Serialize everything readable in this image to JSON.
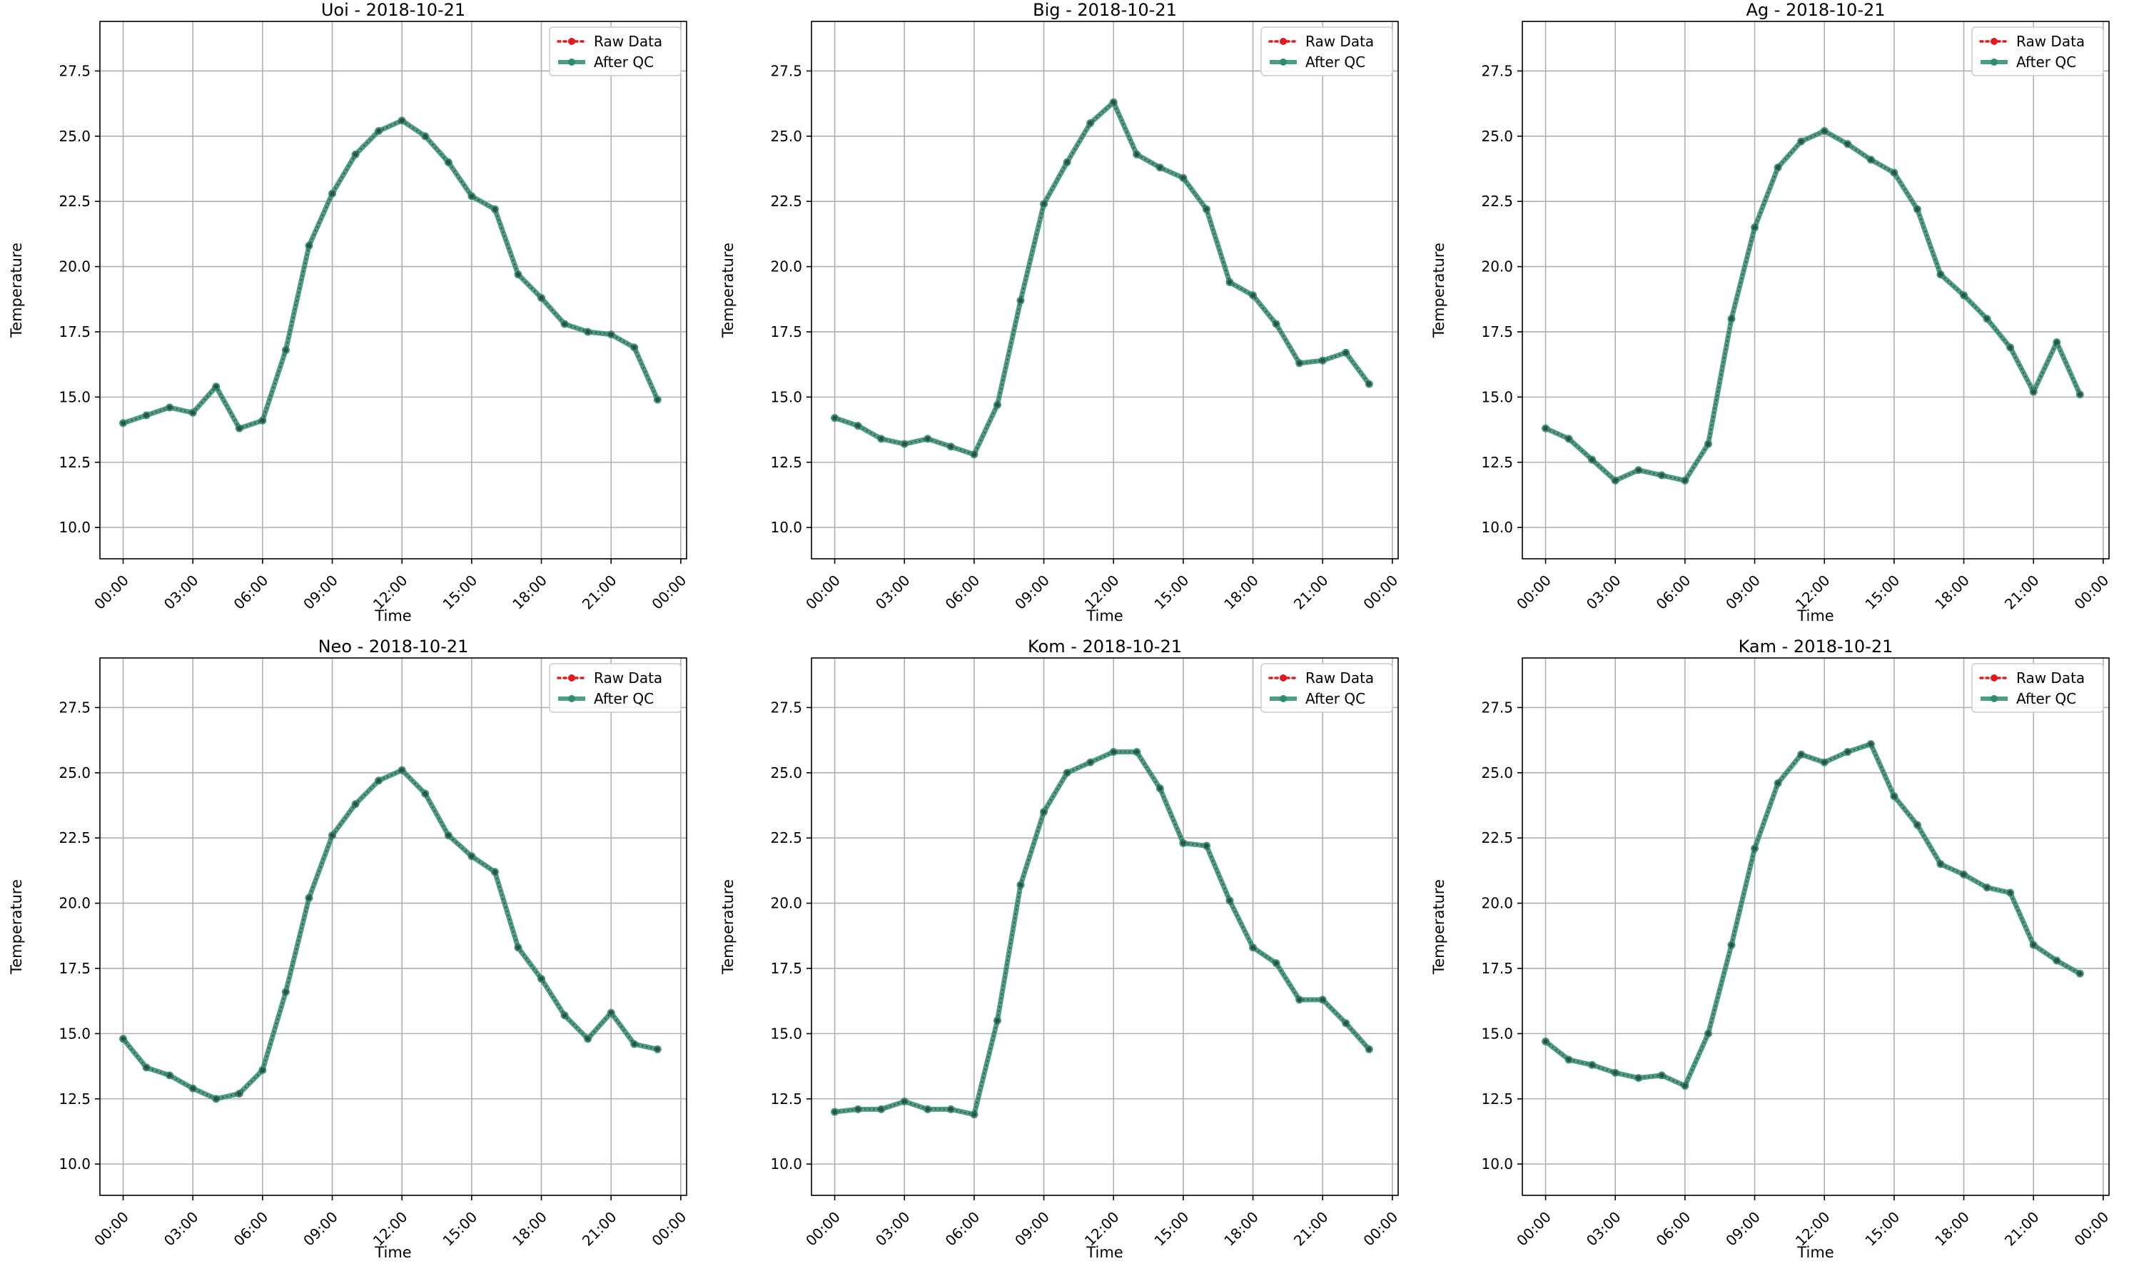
{
  "chart_data": [
    {
      "type": "line",
      "title": "Uoi - 2018-10-21",
      "xlabel": "Time",
      "ylabel": "Temperature",
      "ylim": [
        8.8,
        29.4
      ],
      "yticks": [
        10.0,
        12.5,
        15.0,
        17.5,
        20.0,
        22.5,
        25.0,
        27.5
      ],
      "ytick_labels": [
        "10.0",
        "12.5",
        "15.0",
        "17.5",
        "20.0",
        "22.5",
        "25.0",
        "27.5"
      ],
      "xlim": [
        "2018-10-20 23:00",
        "2018-10-22 00:15"
      ],
      "xtick_labels": [
        "00:00",
        "03:00",
        "06:00",
        "09:00",
        "12:00",
        "15:00",
        "18:00",
        "21:00",
        "00:00"
      ],
      "grid": true,
      "legend_position": "top-right",
      "x": [
        "00:00",
        "01:00",
        "02:00",
        "03:00",
        "04:00",
        "05:00",
        "06:00",
        "07:00",
        "08:00",
        "09:00",
        "10:00",
        "11:00",
        "12:00",
        "13:00",
        "14:00",
        "15:00",
        "16:00",
        "17:00",
        "18:00",
        "19:00",
        "20:00",
        "21:00",
        "22:00",
        "23:00"
      ],
      "series": [
        {
          "name": "Raw Data",
          "color": "#e41a1c",
          "values": [
            14.0,
            14.3,
            14.6,
            14.4,
            15.4,
            13.8,
            14.1,
            16.8,
            20.8,
            22.8,
            24.3,
            25.2,
            25.6,
            25.0,
            24.0,
            22.7,
            22.2,
            19.7,
            18.8,
            17.8,
            17.5,
            17.4,
            16.9,
            14.9
          ]
        },
        {
          "name": "After QC",
          "color": "#2e8b6e",
          "values": [
            14.0,
            14.3,
            14.6,
            14.4,
            15.4,
            13.8,
            14.1,
            16.8,
            20.8,
            22.8,
            24.3,
            25.2,
            25.6,
            25.0,
            24.0,
            22.7,
            22.2,
            19.7,
            18.8,
            17.8,
            17.5,
            17.4,
            16.9,
            14.9
          ]
        }
      ]
    },
    {
      "type": "line",
      "title": "Big - 2018-10-21",
      "xlabel": "Time",
      "ylabel": "Temperature",
      "ylim": [
        8.8,
        29.4
      ],
      "yticks": [
        10.0,
        12.5,
        15.0,
        17.5,
        20.0,
        22.5,
        25.0,
        27.5
      ],
      "ytick_labels": [
        "10.0",
        "12.5",
        "15.0",
        "17.5",
        "20.0",
        "22.5",
        "25.0",
        "27.5"
      ],
      "xlim": [
        "2018-10-20 23:00",
        "2018-10-22 00:15"
      ],
      "xtick_labels": [
        "00:00",
        "03:00",
        "06:00",
        "09:00",
        "12:00",
        "15:00",
        "18:00",
        "21:00",
        "00:00"
      ],
      "grid": true,
      "legend_position": "top-right",
      "x": [
        "00:00",
        "01:00",
        "02:00",
        "03:00",
        "04:00",
        "05:00",
        "06:00",
        "07:00",
        "08:00",
        "09:00",
        "10:00",
        "11:00",
        "12:00",
        "13:00",
        "14:00",
        "15:00",
        "16:00",
        "17:00",
        "18:00",
        "19:00",
        "20:00",
        "21:00",
        "22:00",
        "23:00"
      ],
      "series": [
        {
          "name": "Raw Data",
          "color": "#e41a1c",
          "values": [
            14.2,
            13.9,
            13.4,
            13.2,
            13.4,
            13.1,
            12.8,
            14.7,
            18.7,
            22.4,
            24.0,
            25.5,
            26.3,
            24.3,
            23.8,
            23.4,
            22.2,
            19.4,
            18.9,
            17.8,
            16.3,
            16.4,
            16.7,
            15.5
          ]
        },
        {
          "name": "After QC",
          "color": "#2e8b6e",
          "values": [
            14.2,
            13.9,
            13.4,
            13.2,
            13.4,
            13.1,
            12.8,
            14.7,
            18.7,
            22.4,
            24.0,
            25.5,
            26.3,
            24.3,
            23.8,
            23.4,
            22.2,
            19.4,
            18.9,
            17.8,
            16.3,
            16.4,
            16.7,
            15.5
          ]
        }
      ]
    },
    {
      "type": "line",
      "title": "Ag - 2018-10-21",
      "xlabel": "Time",
      "ylabel": "Temperature",
      "ylim": [
        8.8,
        29.4
      ],
      "yticks": [
        10.0,
        12.5,
        15.0,
        17.5,
        20.0,
        22.5,
        25.0,
        27.5
      ],
      "ytick_labels": [
        "10.0",
        "12.5",
        "15.0",
        "17.5",
        "20.0",
        "22.5",
        "25.0",
        "27.5"
      ],
      "xlim": [
        "2018-10-20 23:00",
        "2018-10-22 00:15"
      ],
      "xtick_labels": [
        "00:00",
        "03:00",
        "06:00",
        "09:00",
        "12:00",
        "15:00",
        "18:00",
        "21:00",
        "00:00"
      ],
      "grid": true,
      "legend_position": "top-right",
      "x": [
        "00:00",
        "01:00",
        "02:00",
        "03:00",
        "04:00",
        "05:00",
        "06:00",
        "07:00",
        "08:00",
        "09:00",
        "10:00",
        "11:00",
        "12:00",
        "13:00",
        "14:00",
        "15:00",
        "16:00",
        "17:00",
        "18:00",
        "19:00",
        "20:00",
        "21:00",
        "22:00",
        "23:00"
      ],
      "series": [
        {
          "name": "Raw Data",
          "color": "#e41a1c",
          "values": [
            13.8,
            13.4,
            12.6,
            11.8,
            12.2,
            12.0,
            11.8,
            13.2,
            18.0,
            21.5,
            23.8,
            24.8,
            25.2,
            24.7,
            24.1,
            23.6,
            22.2,
            19.7,
            18.9,
            18.0,
            16.9,
            15.2,
            17.1,
            15.1
          ]
        },
        {
          "name": "After QC",
          "color": "#2e8b6e",
          "values": [
            13.8,
            13.4,
            12.6,
            11.8,
            12.2,
            12.0,
            11.8,
            13.2,
            18.0,
            21.5,
            23.8,
            24.8,
            25.2,
            24.7,
            24.1,
            23.6,
            22.2,
            19.7,
            18.9,
            18.0,
            16.9,
            15.2,
            17.1,
            15.1
          ]
        }
      ]
    },
    {
      "type": "line",
      "title": "Neo - 2018-10-21",
      "xlabel": "Time",
      "ylabel": "Temperature",
      "ylim": [
        8.8,
        29.4
      ],
      "yticks": [
        10.0,
        12.5,
        15.0,
        17.5,
        20.0,
        22.5,
        25.0,
        27.5
      ],
      "ytick_labels": [
        "10.0",
        "12.5",
        "15.0",
        "17.5",
        "20.0",
        "22.5",
        "25.0",
        "27.5"
      ],
      "xlim": [
        "2018-10-20 23:00",
        "2018-10-22 00:15"
      ],
      "xtick_labels": [
        "00:00",
        "03:00",
        "06:00",
        "09:00",
        "12:00",
        "15:00",
        "18:00",
        "21:00",
        "00:00"
      ],
      "grid": true,
      "legend_position": "top-right",
      "x": [
        "00:00",
        "01:00",
        "02:00",
        "03:00",
        "04:00",
        "05:00",
        "06:00",
        "07:00",
        "08:00",
        "09:00",
        "10:00",
        "11:00",
        "12:00",
        "13:00",
        "14:00",
        "15:00",
        "16:00",
        "17:00",
        "18:00",
        "19:00",
        "20:00",
        "21:00",
        "22:00",
        "23:00"
      ],
      "series": [
        {
          "name": "Raw Data",
          "color": "#e41a1c",
          "values": [
            14.8,
            13.7,
            13.4,
            12.9,
            12.5,
            12.7,
            13.6,
            16.6,
            20.2,
            22.6,
            23.8,
            24.7,
            25.1,
            24.2,
            22.6,
            21.8,
            21.2,
            18.3,
            17.1,
            15.7,
            14.8,
            15.8,
            14.6,
            14.4
          ]
        },
        {
          "name": "After QC",
          "color": "#2e8b6e",
          "values": [
            14.8,
            13.7,
            13.4,
            12.9,
            12.5,
            12.7,
            13.6,
            16.6,
            20.2,
            22.6,
            23.8,
            24.7,
            25.1,
            24.2,
            22.6,
            21.8,
            21.2,
            18.3,
            17.1,
            15.7,
            14.8,
            15.8,
            14.6,
            14.4
          ]
        }
      ]
    },
    {
      "type": "line",
      "title": "Kom - 2018-10-21",
      "xlabel": "Time",
      "ylabel": "Temperature",
      "ylim": [
        8.8,
        29.4
      ],
      "yticks": [
        10.0,
        12.5,
        15.0,
        17.5,
        20.0,
        22.5,
        25.0,
        27.5
      ],
      "ytick_labels": [
        "10.0",
        "12.5",
        "15.0",
        "17.5",
        "20.0",
        "22.5",
        "25.0",
        "27.5"
      ],
      "xlim": [
        "2018-10-20 23:00",
        "2018-10-22 00:15"
      ],
      "xtick_labels": [
        "00:00",
        "03:00",
        "06:00",
        "09:00",
        "12:00",
        "15:00",
        "18:00",
        "21:00",
        "00:00"
      ],
      "grid": true,
      "legend_position": "top-right",
      "x": [
        "00:00",
        "01:00",
        "02:00",
        "03:00",
        "04:00",
        "05:00",
        "06:00",
        "07:00",
        "08:00",
        "09:00",
        "10:00",
        "11:00",
        "12:00",
        "13:00",
        "14:00",
        "15:00",
        "16:00",
        "17:00",
        "18:00",
        "19:00",
        "20:00",
        "21:00",
        "22:00",
        "23:00"
      ],
      "series": [
        {
          "name": "Raw Data",
          "color": "#e41a1c",
          "values": [
            12.0,
            12.1,
            12.1,
            12.4,
            12.1,
            12.1,
            11.9,
            15.5,
            20.7,
            23.5,
            25.0,
            25.4,
            25.8,
            25.8,
            24.4,
            22.3,
            22.2,
            20.1,
            18.3,
            17.7,
            16.3,
            16.3,
            15.4,
            14.4
          ]
        },
        {
          "name": "After QC",
          "color": "#2e8b6e",
          "values": [
            12.0,
            12.1,
            12.1,
            12.4,
            12.1,
            12.1,
            11.9,
            15.5,
            20.7,
            23.5,
            25.0,
            25.4,
            25.8,
            25.8,
            24.4,
            22.3,
            22.2,
            20.1,
            18.3,
            17.7,
            16.3,
            16.3,
            15.4,
            14.4
          ]
        }
      ]
    },
    {
      "type": "line",
      "title": "Kam - 2018-10-21",
      "xlabel": "Time",
      "ylabel": "Temperature",
      "ylim": [
        8.8,
        29.4
      ],
      "yticks": [
        10.0,
        12.5,
        15.0,
        17.5,
        20.0,
        22.5,
        25.0,
        27.5
      ],
      "ytick_labels": [
        "10.0",
        "12.5",
        "15.0",
        "17.5",
        "20.0",
        "22.5",
        "25.0",
        "27.5"
      ],
      "xlim": [
        "2018-10-20 23:00",
        "2018-10-22 00:15"
      ],
      "xtick_labels": [
        "00:00",
        "03:00",
        "06:00",
        "09:00",
        "12:00",
        "15:00",
        "18:00",
        "21:00",
        "00:00"
      ],
      "grid": true,
      "legend_position": "top-right",
      "x": [
        "00:00",
        "01:00",
        "02:00",
        "03:00",
        "04:00",
        "05:00",
        "06:00",
        "07:00",
        "08:00",
        "09:00",
        "10:00",
        "11:00",
        "12:00",
        "13:00",
        "14:00",
        "15:00",
        "16:00",
        "17:00",
        "18:00",
        "19:00",
        "20:00",
        "21:00",
        "22:00",
        "23:00"
      ],
      "series": [
        {
          "name": "Raw Data",
          "color": "#e41a1c",
          "values": [
            14.7,
            14.0,
            13.8,
            13.5,
            13.3,
            13.4,
            13.0,
            15.0,
            18.4,
            22.1,
            24.6,
            25.7,
            25.4,
            25.8,
            26.1,
            24.1,
            23.0,
            21.5,
            21.1,
            20.6,
            20.4,
            18.4,
            17.8,
            17.3
          ]
        },
        {
          "name": "After QC",
          "color": "#2e8b6e",
          "values": [
            14.7,
            14.0,
            13.8,
            13.5,
            13.3,
            13.4,
            13.0,
            15.0,
            18.4,
            22.1,
            24.6,
            25.7,
            25.4,
            25.8,
            26.1,
            24.1,
            23.0,
            21.5,
            21.1,
            20.6,
            20.4,
            18.4,
            17.8,
            17.3
          ]
        }
      ]
    }
  ]
}
